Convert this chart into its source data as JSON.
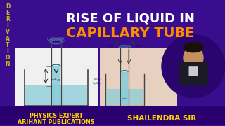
{
  "bg_color": "#3a0d8f",
  "title_line1": "RISE OF LIQUID IN",
  "title_line2": "CAPILLARY TUBE",
  "title_color1": "#ffffff",
  "title_color2": "#ff8c00",
  "deriv_letters": [
    "D",
    "E",
    "R",
    "I",
    "V",
    "A",
    "T",
    "I",
    "O",
    "N"
  ],
  "deriv_color": "#c8b820",
  "bottom_left1": "PHYSICS EXPERT",
  "bottom_left2": "ARIHANT PUBLICATIONS",
  "bottom_right": "SHAILENDRA SIR",
  "bottom_color": "#ffd700",
  "bottom_bg": "#2a0070",
  "diagram_bg1": "#f0f0f0",
  "diagram_bg2": "#e8d0c0",
  "liquid_color": "#88ccd8",
  "liquid_color2": "#7bbdcc",
  "tube_color": "#444444",
  "title_area_color": "#3a0d8f"
}
